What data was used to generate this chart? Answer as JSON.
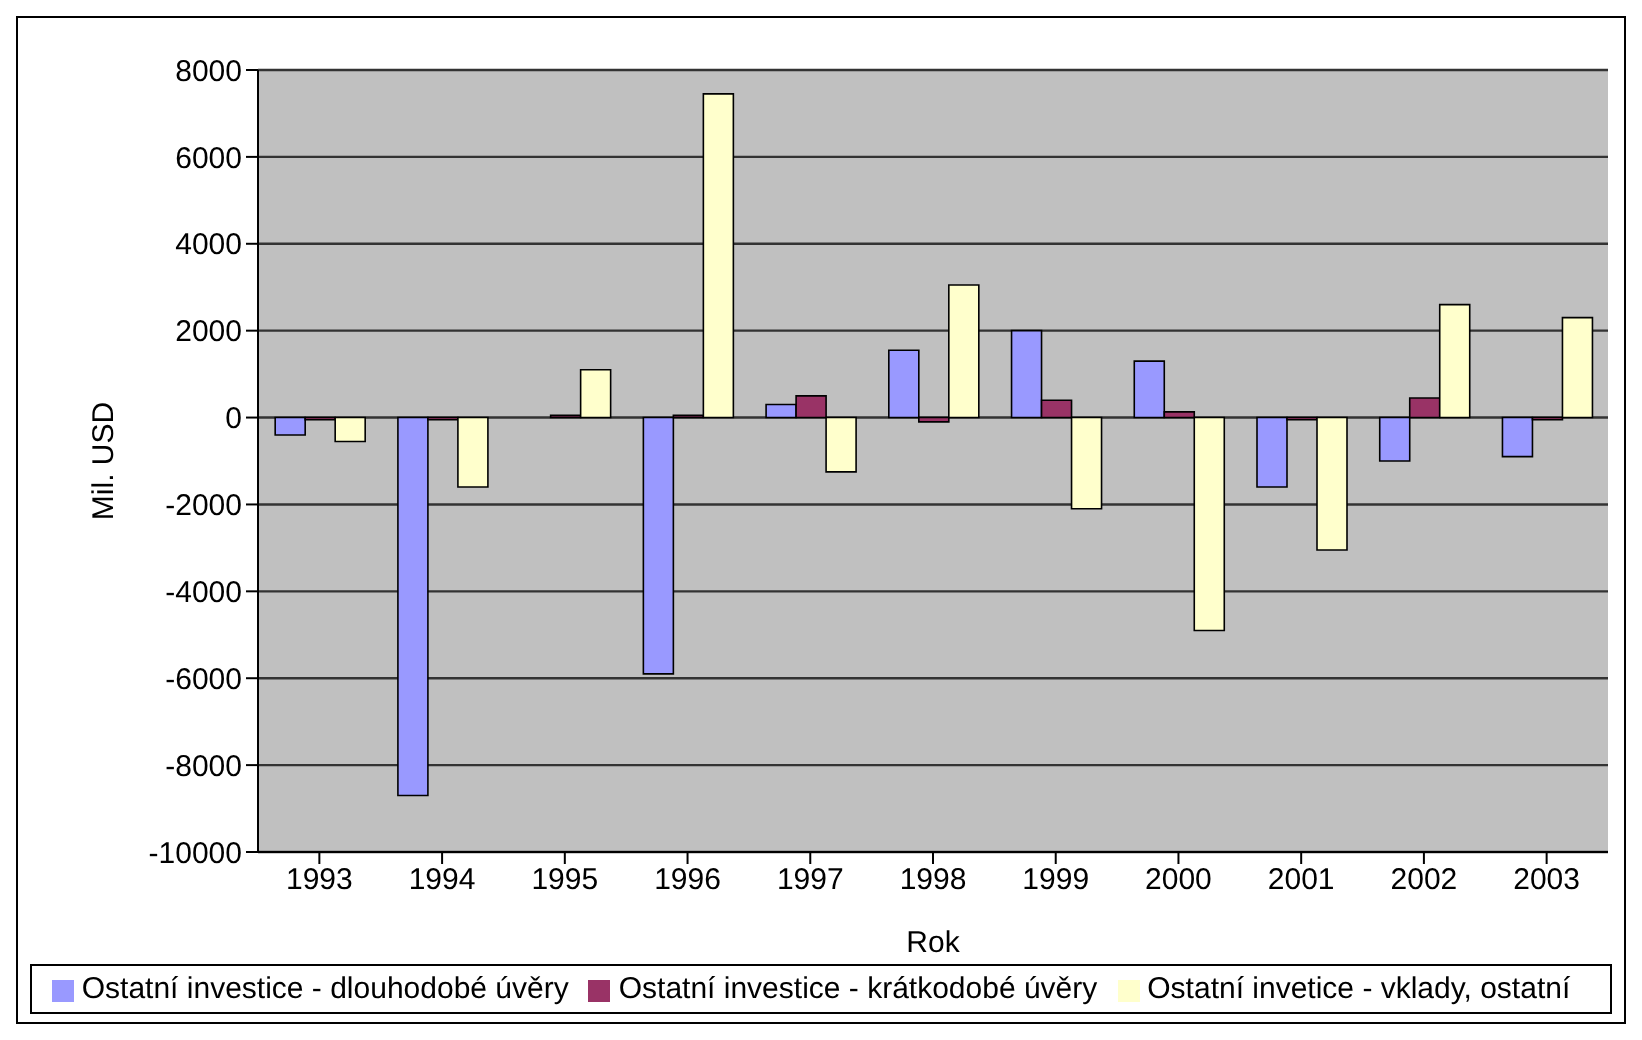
{
  "chart_data": {
    "type": "bar",
    "xlabel": "Rok",
    "ylabel": "Mil. USD",
    "categories": [
      "1993",
      "1994",
      "1995",
      "1996",
      "1997",
      "1998",
      "1999",
      "2000",
      "2001",
      "2002",
      "2003"
    ],
    "series": [
      {
        "name": "Ostatní investice - dlouhodobé úvěry",
        "color": "#9999ff",
        "values": [
          -400,
          -8700,
          0,
          -5900,
          300,
          1550,
          2000,
          1300,
          -1600,
          -1000,
          -900
        ]
      },
      {
        "name": "Ostatní investice - krátkodobé úvěry",
        "color": "#993366",
        "values": [
          -50,
          -50,
          50,
          50,
          500,
          -100,
          400,
          130,
          -50,
          450,
          -50
        ]
      },
      {
        "name": "Ostatní invetice - vklady, ostatní",
        "color": "#ffffcc",
        "values": [
          -550,
          -1600,
          1100,
          7450,
          -1250,
          3050,
          -2100,
          -4900,
          -3050,
          2600,
          2300
        ]
      }
    ],
    "ylim": [
      -10000,
      8000
    ],
    "yticks": [
      -10000,
      -8000,
      -6000,
      -4000,
      -2000,
      0,
      2000,
      4000,
      6000,
      8000
    ],
    "grid": "y",
    "legend": "bottom"
  }
}
